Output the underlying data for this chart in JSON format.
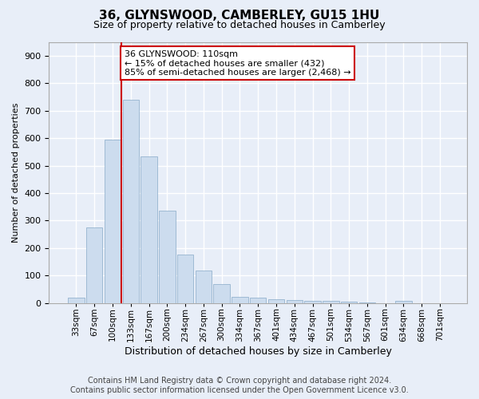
{
  "title": "36, GLYNSWOOD, CAMBERLEY, GU15 1HU",
  "subtitle": "Size of property relative to detached houses in Camberley",
  "xlabel": "Distribution of detached houses by size in Camberley",
  "ylabel": "Number of detached properties",
  "bar_color": "#ccdcee",
  "bar_edge_color": "#88aac8",
  "background_color": "#e8eef8",
  "grid_color": "#ffffff",
  "categories": [
    "33sqm",
    "67sqm",
    "100sqm",
    "133sqm",
    "167sqm",
    "200sqm",
    "234sqm",
    "267sqm",
    "300sqm",
    "334sqm",
    "367sqm",
    "401sqm",
    "434sqm",
    "467sqm",
    "501sqm",
    "534sqm",
    "567sqm",
    "601sqm",
    "634sqm",
    "668sqm",
    "701sqm"
  ],
  "values": [
    20,
    275,
    595,
    740,
    535,
    335,
    178,
    118,
    68,
    22,
    20,
    13,
    11,
    8,
    7,
    5,
    2,
    0,
    8,
    0,
    0
  ],
  "ylim": [
    0,
    950
  ],
  "yticks": [
    0,
    100,
    200,
    300,
    400,
    500,
    600,
    700,
    800,
    900
  ],
  "vline_x": 2.5,
  "vline_color": "#cc0000",
  "annotation_text": "36 GLYNSWOOD: 110sqm\n← 15% of detached houses are smaller (432)\n85% of semi-detached houses are larger (2,468) →",
  "annotation_box_facecolor": "#ffffff",
  "annotation_box_edgecolor": "#cc0000",
  "footer": "Contains HM Land Registry data © Crown copyright and database right 2024.\nContains public sector information licensed under the Open Government Licence v3.0.",
  "title_fontsize": 11,
  "subtitle_fontsize": 9,
  "ylabel_fontsize": 8,
  "xlabel_fontsize": 9,
  "tick_fontsize": 8,
  "xtick_fontsize": 7.5,
  "annotation_fontsize": 8,
  "footer_fontsize": 7
}
